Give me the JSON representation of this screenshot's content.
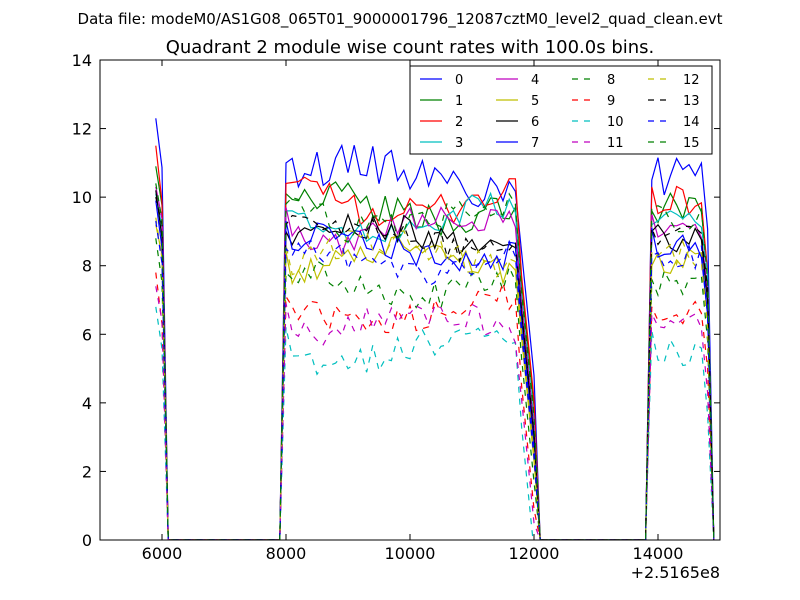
{
  "figure": {
    "suptitle": "Data file: modeM0/AS1G08_065T01_9000001796_12087cztM0_level2_quad_clean.evt",
    "title": "Quadrant 2 module wise count rates with 100.0s bins.",
    "x_offset_label": "+2.5165e8"
  },
  "chart_data": {
    "type": "line",
    "title": "Quadrant 2 module wise count rates with 100.0s bins.",
    "xlabel": "",
    "ylabel": "",
    "x_offset": 251650000,
    "xlim": [
      5000,
      15000
    ],
    "ylim": [
      0,
      14
    ],
    "xticks": [
      6000,
      8000,
      10000,
      12000,
      14000
    ],
    "xtick_labels": [
      "6000",
      "8000",
      "10000",
      "12000",
      "14000"
    ],
    "yticks": [
      0,
      2,
      4,
      6,
      8,
      10,
      12,
      14
    ],
    "ytick_labels": [
      "0",
      "2",
      "4",
      "6",
      "8",
      "10",
      "12",
      "14"
    ],
    "grid": false,
    "legend_position": "top-right",
    "segments": [
      {
        "x_start": 5900,
        "x_end": 6000
      },
      {
        "x_start": 8000,
        "x_end": 12000
      },
      {
        "x_start": 13900,
        "x_end": 14800
      }
    ],
    "series": [
      {
        "name": "0",
        "color": "#0000ff",
        "dashed": false,
        "level": 10.6,
        "segment_start": [
          12.3,
          11.0,
          10.5
        ],
        "amp": 0.4
      },
      {
        "name": "1",
        "color": "#008000",
        "dashed": false,
        "level": 9.7,
        "segment_start": [
          10.9,
          10.1,
          9.6
        ],
        "amp": 0.35
      },
      {
        "name": "2",
        "color": "#ff0000",
        "dashed": false,
        "level": 9.9,
        "segment_start": [
          11.5,
          10.4,
          10.3
        ],
        "amp": 0.35
      },
      {
        "name": "3",
        "color": "#00bfbf",
        "dashed": false,
        "level": 9.3,
        "segment_start": [
          10.1,
          9.6,
          9.2
        ],
        "amp": 0.3
      },
      {
        "name": "4",
        "color": "#bf00bf",
        "dashed": false,
        "level": 9.1,
        "segment_start": [
          10.3,
          9.7,
          9.5
        ],
        "amp": 0.3
      },
      {
        "name": "5",
        "color": "#bfbf00",
        "dashed": false,
        "level": 8.1,
        "segment_start": [
          9.2,
          8.4,
          8.0
        ],
        "amp": 0.3
      },
      {
        "name": "6",
        "color": "#000000",
        "dashed": false,
        "level": 8.8,
        "segment_start": [
          10.2,
          9.0,
          9.0
        ],
        "amp": 0.3
      },
      {
        "name": "7",
        "color": "#0000ff",
        "dashed": false,
        "level": 8.5,
        "segment_start": [
          9.9,
          9.3,
          9.1
        ],
        "amp": 0.3
      },
      {
        "name": "8",
        "color": "#008000",
        "dashed": true,
        "level": 7.5,
        "segment_start": [
          8.8,
          7.8,
          7.6
        ],
        "amp": 0.3
      },
      {
        "name": "9",
        "color": "#ff0000",
        "dashed": true,
        "level": 6.7,
        "segment_start": [
          7.8,
          7.1,
          6.8
        ],
        "amp": 0.3
      },
      {
        "name": "10",
        "color": "#00bfbf",
        "dashed": true,
        "level": 5.5,
        "segment_start": [
          6.8,
          6.2,
          6.1
        ],
        "amp": 0.3
      },
      {
        "name": "11",
        "color": "#bf00bf",
        "dashed": true,
        "level": 6.3,
        "segment_start": [
          7.4,
          6.9,
          6.6
        ],
        "amp": 0.3
      },
      {
        "name": "12",
        "color": "#bfbf00",
        "dashed": true,
        "level": 8.3,
        "segment_start": [
          9.4,
          8.6,
          8.4
        ],
        "amp": 0.3
      },
      {
        "name": "13",
        "color": "#000000",
        "dashed": true,
        "level": 8.9,
        "segment_start": [
          10.0,
          9.2,
          9.1
        ],
        "amp": 0.3
      },
      {
        "name": "14",
        "color": "#0000ff",
        "dashed": true,
        "level": 8.2,
        "segment_start": [
          9.3,
          8.5,
          8.3
        ],
        "amp": 0.3
      },
      {
        "name": "15",
        "color": "#008000",
        "dashed": true,
        "level": 9.4,
        "segment_start": [
          10.4,
          9.8,
          9.7
        ],
        "amp": 0.35
      }
    ]
  }
}
